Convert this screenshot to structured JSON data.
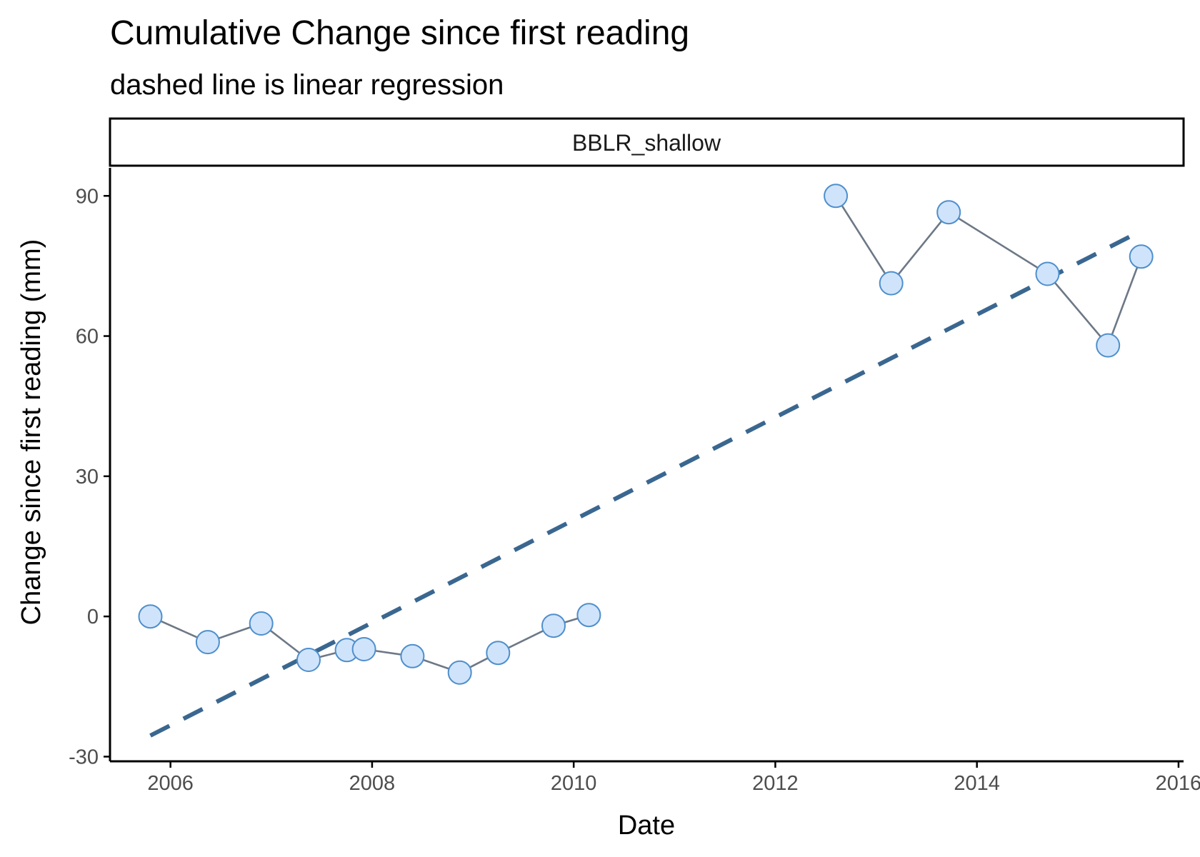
{
  "chart_data": {
    "type": "line",
    "title": "Cumulative Change since first reading",
    "subtitle": "dashed line is linear regression",
    "facet_label": "BBLR_shallow",
    "xlabel": "Date",
    "ylabel": "Change since first reading (mm)",
    "xlim": [
      2005.4,
      2016.05
    ],
    "ylim": [
      -31,
      96
    ],
    "x_ticks": [
      2006,
      2008,
      2010,
      2012,
      2014,
      2016
    ],
    "y_ticks": [
      -30,
      0,
      30,
      60,
      90
    ],
    "grid": false,
    "series": [
      {
        "type": "line+points",
        "x": [
          2005.8,
          2006.37,
          2006.9,
          2007.37,
          2007.75,
          2007.92,
          2008.4,
          2008.87,
          2009.25,
          2009.8,
          2010.15
        ],
        "y": [
          0,
          -5.5,
          -1.5,
          -9.3,
          -7.2,
          -7,
          -8.5,
          -12,
          -7.8,
          -2,
          0.3
        ]
      },
      {
        "type": "line+points",
        "x": [
          2012.6,
          2013.15,
          2013.72,
          2014.7,
          2015.3,
          2015.63
        ],
        "y": [
          90,
          71.3,
          86.5,
          73.3,
          58,
          77
        ]
      },
      {
        "type": "regression-dashed",
        "x": [
          2005.8,
          2015.63
        ],
        "y": [
          -25.5,
          82.5
        ]
      }
    ],
    "colors": {
      "point_fill": "#cfe4fb",
      "point_stroke": "#4f8fcc",
      "connector": "#6d7886",
      "regression": "#3a6790",
      "axis": "#000000",
      "tick_text": "#4d4d4d"
    }
  }
}
